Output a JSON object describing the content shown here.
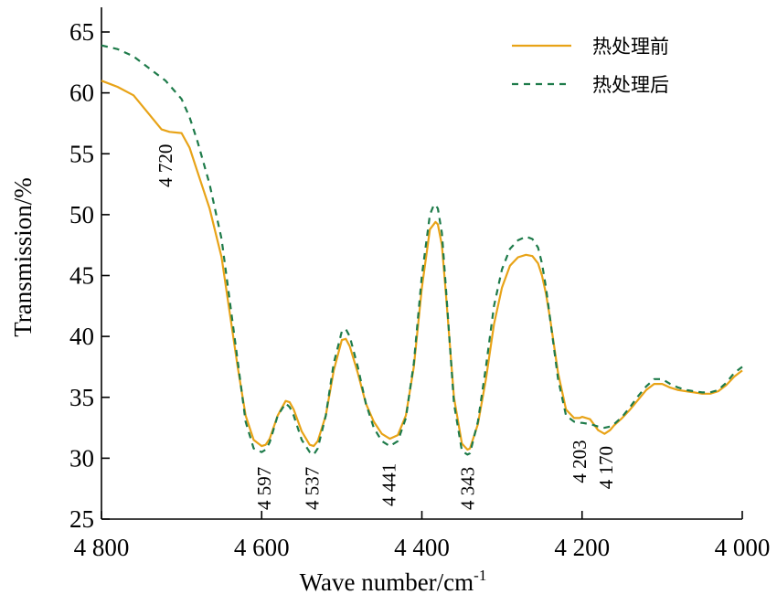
{
  "chart_data": {
    "type": "line",
    "xlabel": "Wave number/cm",
    "xlabel_sup": "-1",
    "ylabel": "Transmission/%",
    "xlim": [
      4800,
      4000
    ],
    "ylim": [
      25,
      65
    ],
    "x_ticks": [
      4800,
      4600,
      4400,
      4200,
      4000
    ],
    "x_tick_labels": [
      "4 800",
      "4 600",
      "4 400",
      "4 200",
      "4 000"
    ],
    "y_ticks": [
      25,
      30,
      35,
      40,
      45,
      50,
      55,
      60,
      65
    ],
    "y_tick_labels": [
      "25",
      "30",
      "35",
      "40",
      "45",
      "50",
      "55",
      "60",
      "65"
    ],
    "grid": false,
    "legend_position": "top-right",
    "colors": {
      "before": "#E8A317",
      "after": "#1E7B4A"
    },
    "series": [
      {
        "name": "热处理前",
        "style": "solid",
        "x": [
          4800,
          4780,
          4760,
          4740,
          4725,
          4715,
          4700,
          4690,
          4680,
          4665,
          4650,
          4640,
          4630,
          4620,
          4610,
          4600,
          4595,
          4590,
          4580,
          4570,
          4565,
          4560,
          4550,
          4540,
          4535,
          4530,
          4520,
          4510,
          4500,
          4495,
          4490,
          4480,
          4470,
          4460,
          4450,
          4440,
          4430,
          4420,
          4410,
          4400,
          4390,
          4383,
          4380,
          4375,
          4370,
          4360,
          4350,
          4343,
          4340,
          4330,
          4320,
          4310,
          4300,
          4290,
          4280,
          4270,
          4262,
          4255,
          4250,
          4245,
          4240,
          4230,
          4220,
          4210,
          4203,
          4200,
          4190,
          4180,
          4172,
          4165,
          4160,
          4150,
          4140,
          4130,
          4120,
          4110,
          4100,
          4090,
          4080,
          4070,
          4060,
          4050,
          4040,
          4030,
          4020,
          4010,
          4000
        ],
        "y": [
          61.0,
          60.5,
          59.8,
          58.2,
          57.0,
          56.8,
          56.7,
          55.5,
          53.5,
          50.5,
          46.5,
          42.0,
          37.5,
          33.5,
          31.5,
          31.0,
          31.1,
          31.6,
          33.5,
          34.7,
          34.6,
          34.0,
          32.2,
          31.1,
          31.0,
          31.4,
          33.5,
          37.2,
          39.7,
          39.8,
          39.2,
          37.0,
          34.5,
          33.0,
          32.0,
          31.6,
          31.9,
          33.5,
          37.5,
          44.0,
          48.8,
          49.4,
          49.2,
          47.5,
          43.5,
          35.0,
          31.2,
          30.7,
          30.8,
          32.8,
          36.5,
          41.0,
          44.0,
          45.8,
          46.5,
          46.7,
          46.6,
          46.0,
          45.0,
          43.5,
          41.5,
          37.0,
          34.0,
          33.3,
          33.3,
          33.4,
          33.2,
          32.3,
          32.0,
          32.3,
          32.7,
          33.3,
          34.0,
          34.8,
          35.6,
          36.1,
          36.1,
          35.8,
          35.6,
          35.5,
          35.4,
          35.3,
          35.3,
          35.5,
          36.0,
          36.7,
          37.2
        ]
      },
      {
        "name": "热处理后",
        "style": "dashed",
        "x": [
          4800,
          4780,
          4760,
          4740,
          4720,
          4700,
          4690,
          4680,
          4665,
          4650,
          4640,
          4630,
          4620,
          4610,
          4600,
          4595,
          4590,
          4580,
          4570,
          4565,
          4560,
          4550,
          4540,
          4535,
          4530,
          4520,
          4510,
          4500,
          4495,
          4490,
          4480,
          4470,
          4460,
          4450,
          4440,
          4430,
          4420,
          4410,
          4400,
          4390,
          4385,
          4383,
          4380,
          4375,
          4370,
          4360,
          4350,
          4343,
          4340,
          4330,
          4320,
          4310,
          4300,
          4290,
          4280,
          4270,
          4262,
          4255,
          4250,
          4245,
          4240,
          4230,
          4220,
          4210,
          4203,
          4200,
          4190,
          4180,
          4172,
          4165,
          4160,
          4150,
          4140,
          4130,
          4120,
          4110,
          4100,
          4090,
          4080,
          4070,
          4060,
          4050,
          4040,
          4030,
          4020,
          4010,
          4000
        ],
        "y": [
          63.9,
          63.6,
          63.0,
          62.0,
          61.0,
          59.5,
          58.0,
          56.0,
          52.5,
          48.0,
          43.0,
          38.0,
          33.0,
          30.8,
          30.5,
          30.7,
          31.3,
          33.5,
          34.5,
          34.2,
          33.5,
          31.5,
          30.5,
          30.3,
          30.8,
          33.5,
          37.8,
          40.4,
          40.6,
          40.0,
          37.5,
          34.5,
          32.5,
          31.4,
          31.0,
          31.4,
          33.3,
          37.8,
          45.0,
          50.0,
          50.8,
          50.8,
          50.5,
          48.5,
          44.0,
          34.5,
          30.6,
          30.3,
          30.4,
          33.0,
          37.5,
          42.5,
          45.5,
          47.2,
          47.9,
          48.2,
          48.0,
          47.3,
          46.0,
          44.0,
          41.5,
          36.5,
          33.5,
          33.0,
          32.9,
          32.9,
          32.8,
          32.6,
          32.5,
          32.6,
          32.8,
          33.4,
          34.2,
          35.1,
          35.9,
          36.5,
          36.5,
          36.1,
          35.8,
          35.6,
          35.5,
          35.4,
          35.4,
          35.6,
          36.2,
          37.0,
          37.5
        ]
      }
    ],
    "annotations": [
      {
        "text": "4 720",
        "x": 4720,
        "y": 55.8
      },
      {
        "text": "4 597",
        "x": 4597,
        "y": 29.3
      },
      {
        "text": "4 537",
        "x": 4537,
        "y": 29.3
      },
      {
        "text": "4 441",
        "x": 4441,
        "y": 29.6
      },
      {
        "text": "4 343",
        "x": 4343,
        "y": 29.3
      },
      {
        "text": "4 203",
        "x": 4203,
        "y": 31.5
      },
      {
        "text": "4 170",
        "x": 4170,
        "y": 31.0
      }
    ]
  }
}
